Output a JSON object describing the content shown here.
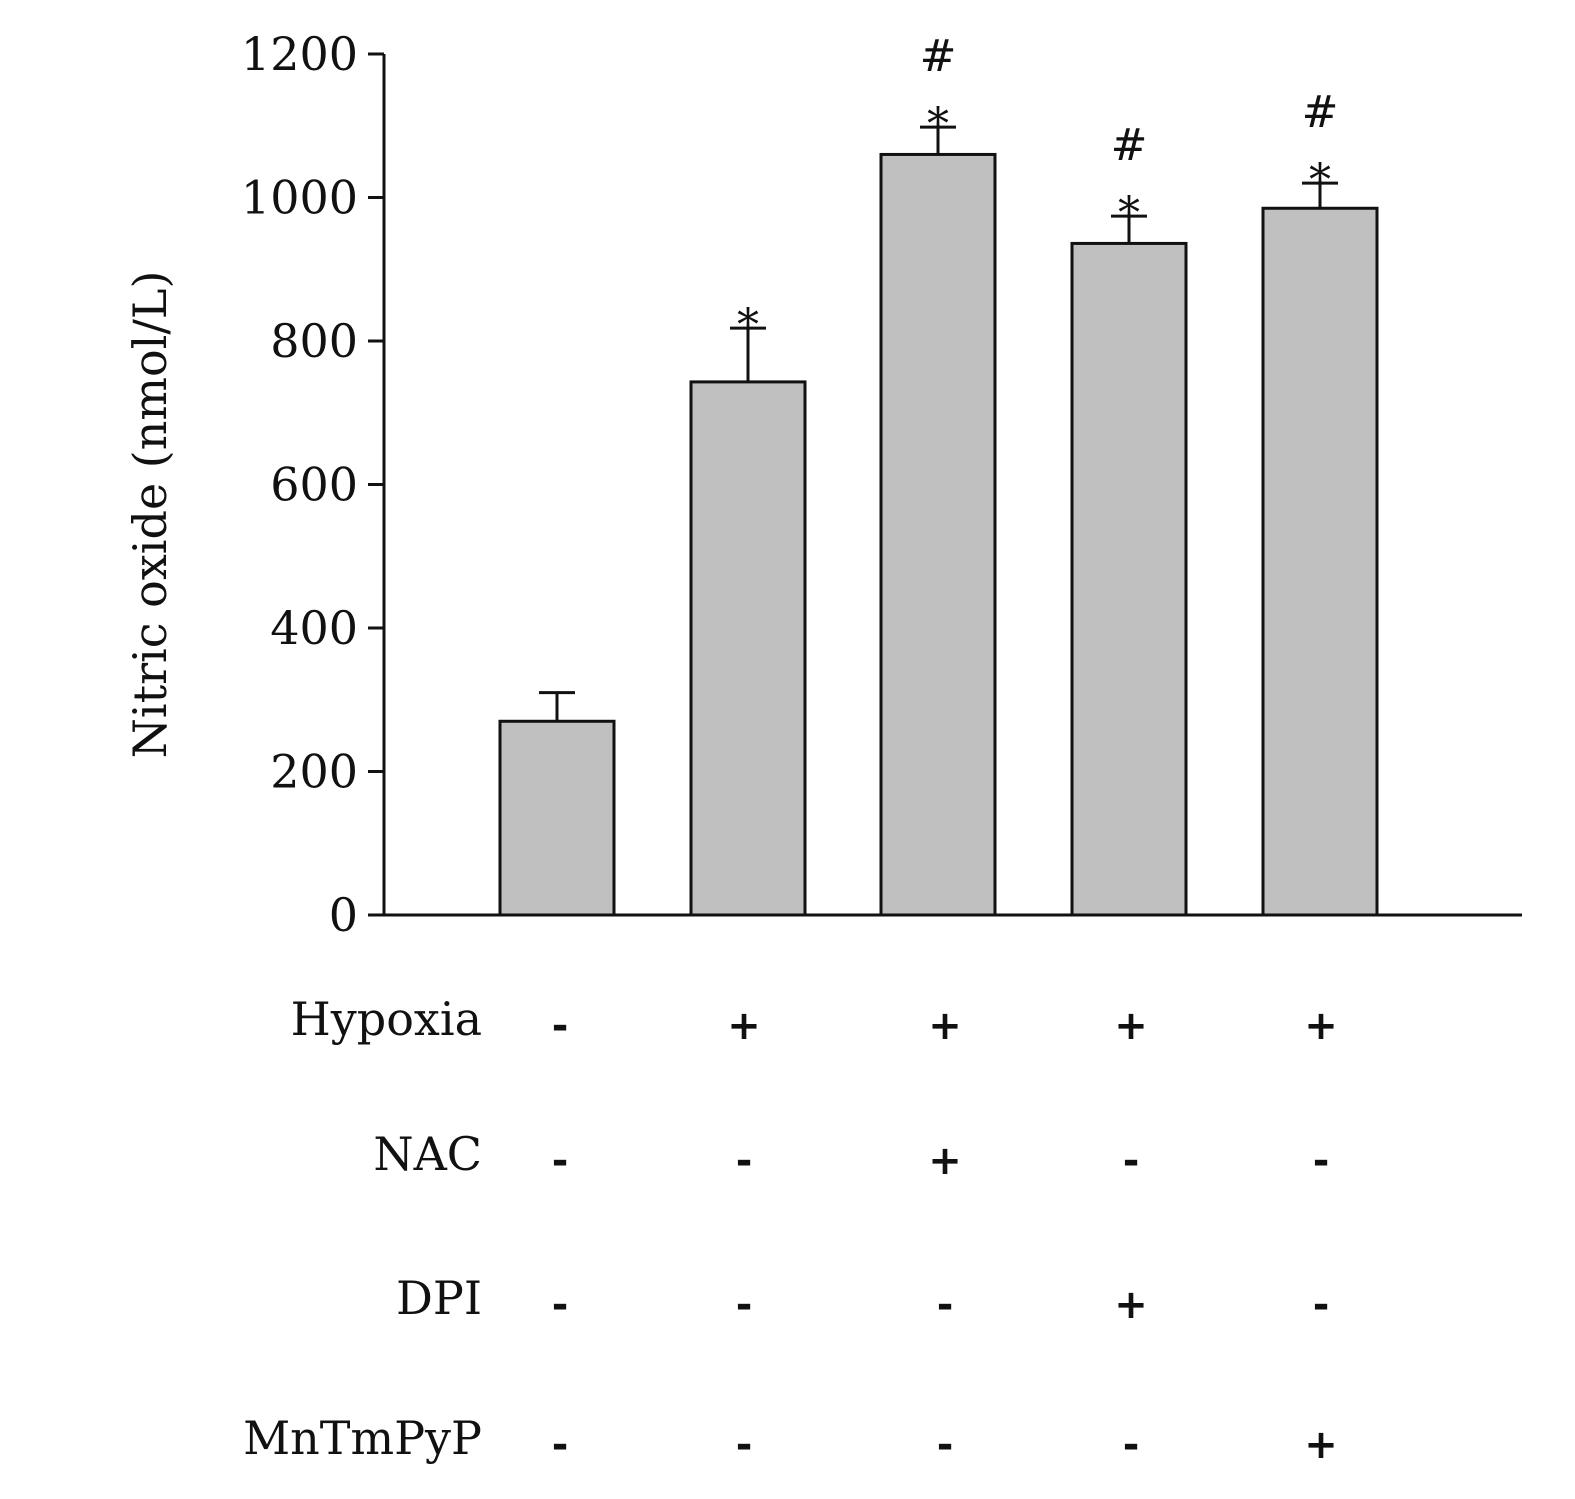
{
  "chart_data": {
    "type": "bar",
    "ylabel": "Nitric oxide (nmol/L)",
    "ylim": [
      0,
      1200
    ],
    "yticks": [
      "0",
      "200",
      "400",
      "600",
      "800",
      "1000",
      "1200"
    ],
    "bar_color": "#c0c0c0",
    "grid": false,
    "values": [
      270,
      743,
      1060,
      936,
      985
    ],
    "errors": [
      40,
      75,
      38,
      38,
      35
    ],
    "significance": [
      [],
      [
        "*"
      ],
      [
        "*",
        "#"
      ],
      [
        "*",
        "#"
      ],
      [
        "*",
        "#"
      ]
    ],
    "conditions": [
      {
        "name": "Hypoxia",
        "signs": [
          "-",
          "+",
          "+",
          "+",
          "+"
        ]
      },
      {
        "name": "NAC",
        "signs": [
          "-",
          "-",
          "+",
          "-",
          "-"
        ]
      },
      {
        "name": "DPI",
        "signs": [
          "-",
          "-",
          "-",
          "+",
          "-"
        ]
      },
      {
        "name": "MnTmPyP",
        "signs": [
          "-",
          "-",
          "-",
          "-",
          "+"
        ]
      }
    ]
  }
}
